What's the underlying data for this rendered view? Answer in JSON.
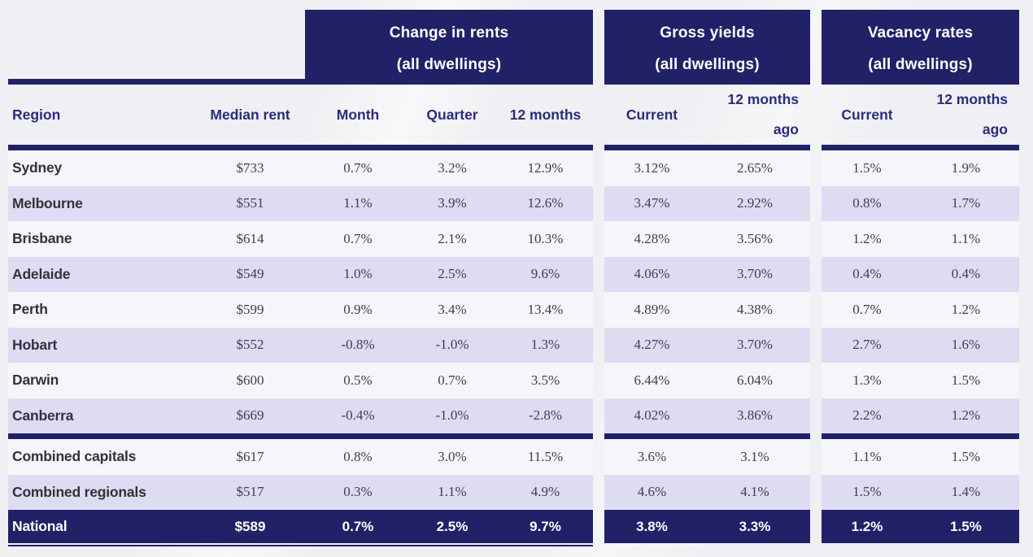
{
  "colors": {
    "navy": "#212168",
    "header_text": "#2b2b80",
    "lavender": "#dedcf2",
    "light_row": "#f6f5f9",
    "value_text": "#3f3f47",
    "region_text": "#32323a",
    "page_bg": "#f0eff3"
  },
  "header": {
    "groups": [
      {
        "line1": "Change in rents",
        "line2": "(all dwellings)"
      },
      {
        "line1": "Gross yields",
        "line2": "(all dwellings)"
      },
      {
        "line1": "Vacancy rates",
        "line2": "(all dwellings)"
      }
    ],
    "cols": {
      "region": "Region",
      "median_rent": "Median rent",
      "month": "Month",
      "quarter": "Quarter",
      "twelve_months": "12 months",
      "current": "Current",
      "ago_line1": "12 months",
      "ago_line2": "ago"
    }
  },
  "rows": [
    {
      "region": "Sydney",
      "median_rent": "$733",
      "month": "0.7%",
      "quarter": "3.2%",
      "twelve_months": "12.9%",
      "gy_current": "3.12%",
      "gy_12mo": "2.65%",
      "vr_current": "1.5%",
      "vr_12mo": "1.9%"
    },
    {
      "region": "Melbourne",
      "median_rent": "$551",
      "month": "1.1%",
      "quarter": "3.9%",
      "twelve_months": "12.6%",
      "gy_current": "3.47%",
      "gy_12mo": "2.92%",
      "vr_current": "0.8%",
      "vr_12mo": "1.7%"
    },
    {
      "region": "Brisbane",
      "median_rent": "$614",
      "month": "0.7%",
      "quarter": "2.1%",
      "twelve_months": "10.3%",
      "gy_current": "4.28%",
      "gy_12mo": "3.56%",
      "vr_current": "1.2%",
      "vr_12mo": "1.1%"
    },
    {
      "region": "Adelaide",
      "median_rent": "$549",
      "month": "1.0%",
      "quarter": "2.5%",
      "twelve_months": "9.6%",
      "gy_current": "4.06%",
      "gy_12mo": "3.70%",
      "vr_current": "0.4%",
      "vr_12mo": "0.4%"
    },
    {
      "region": "Perth",
      "median_rent": "$599",
      "month": "0.9%",
      "quarter": "3.4%",
      "twelve_months": "13.4%",
      "gy_current": "4.89%",
      "gy_12mo": "4.38%",
      "vr_current": "0.7%",
      "vr_12mo": "1.2%"
    },
    {
      "region": "Hobart",
      "median_rent": "$552",
      "month": "-0.8%",
      "quarter": "-1.0%",
      "twelve_months": "1.3%",
      "gy_current": "4.27%",
      "gy_12mo": "3.70%",
      "vr_current": "2.7%",
      "vr_12mo": "1.6%"
    },
    {
      "region": "Darwin",
      "median_rent": "$600",
      "month": "0.5%",
      "quarter": "0.7%",
      "twelve_months": "3.5%",
      "gy_current": "6.44%",
      "gy_12mo": "6.04%",
      "vr_current": "1.3%",
      "vr_12mo": "1.5%"
    },
    {
      "region": "Canberra",
      "median_rent": "$669",
      "month": "-0.4%",
      "quarter": "-1.0%",
      "twelve_months": "-2.8%",
      "gy_current": "4.02%",
      "gy_12mo": "3.86%",
      "vr_current": "2.2%",
      "vr_12mo": "1.2%",
      "separator_after": true
    },
    {
      "region": "Combined capitals",
      "median_rent": "$617",
      "month": "0.8%",
      "quarter": "3.0%",
      "twelve_months": "11.5%",
      "gy_current": "3.6%",
      "gy_12mo": "3.1%",
      "vr_current": "1.1%",
      "vr_12mo": "1.5%"
    },
    {
      "region": "Combined regionals",
      "median_rent": "$517",
      "month": "0.3%",
      "quarter": "1.1%",
      "twelve_months": "4.9%",
      "gy_current": "4.6%",
      "gy_12mo": "4.1%",
      "vr_current": "1.5%",
      "vr_12mo": "1.4%"
    },
    {
      "region": "National",
      "median_rent": "$589",
      "month": "0.7%",
      "quarter": "2.5%",
      "twelve_months": "9.7%",
      "gy_current": "3.8%",
      "gy_12mo": "3.3%",
      "vr_current": "1.2%",
      "vr_12mo": "1.5%",
      "total": true
    }
  ],
  "chart_data": {
    "type": "table",
    "column_groups": [
      {
        "label": "Change in rents (all dwellings)",
        "columns": [
          "Month",
          "Quarter",
          "12 months"
        ]
      },
      {
        "label": "Gross yields (all dwellings)",
        "columns": [
          "Current",
          "12 months ago"
        ]
      },
      {
        "label": "Vacancy rates (all dwellings)",
        "columns": [
          "Current",
          "12 months ago"
        ]
      }
    ],
    "columns": [
      "Region",
      "Median rent",
      "Month",
      "Quarter",
      "12 months",
      "Current",
      "12 months ago",
      "Current",
      "12 months ago"
    ],
    "rows": [
      [
        "Sydney",
        "$733",
        "0.7%",
        "3.2%",
        "12.9%",
        "3.12%",
        "2.65%",
        "1.5%",
        "1.9%"
      ],
      [
        "Melbourne",
        "$551",
        "1.1%",
        "3.9%",
        "12.6%",
        "3.47%",
        "2.92%",
        "0.8%",
        "1.7%"
      ],
      [
        "Brisbane",
        "$614",
        "0.7%",
        "2.1%",
        "10.3%",
        "4.28%",
        "3.56%",
        "1.2%",
        "1.1%"
      ],
      [
        "Adelaide",
        "$549",
        "1.0%",
        "2.5%",
        "9.6%",
        "4.06%",
        "3.70%",
        "0.4%",
        "0.4%"
      ],
      [
        "Perth",
        "$599",
        "0.9%",
        "3.4%",
        "13.4%",
        "4.89%",
        "4.38%",
        "0.7%",
        "1.2%"
      ],
      [
        "Hobart",
        "$552",
        "-0.8%",
        "-1.0%",
        "1.3%",
        "4.27%",
        "3.70%",
        "2.7%",
        "1.6%"
      ],
      [
        "Darwin",
        "$600",
        "0.5%",
        "0.7%",
        "3.5%",
        "6.44%",
        "6.04%",
        "1.3%",
        "1.5%"
      ],
      [
        "Canberra",
        "$669",
        "-0.4%",
        "-1.0%",
        "-2.8%",
        "4.02%",
        "3.86%",
        "2.2%",
        "1.2%"
      ],
      [
        "Combined capitals",
        "$617",
        "0.8%",
        "3.0%",
        "11.5%",
        "3.6%",
        "3.1%",
        "1.1%",
        "1.5%"
      ],
      [
        "Combined regionals",
        "$517",
        "0.3%",
        "1.1%",
        "4.9%",
        "4.6%",
        "4.1%",
        "1.5%",
        "1.4%"
      ],
      [
        "National",
        "$589",
        "0.7%",
        "2.5%",
        "9.7%",
        "3.8%",
        "3.3%",
        "1.2%",
        "1.5%"
      ]
    ]
  }
}
